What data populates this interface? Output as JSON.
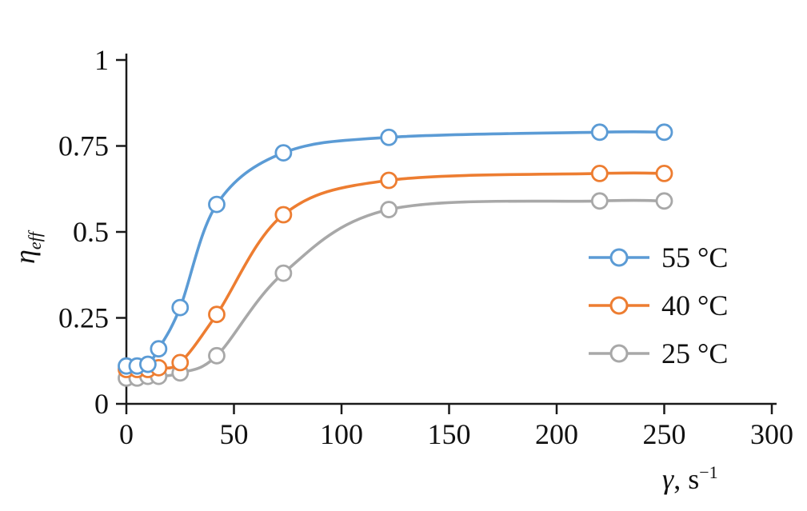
{
  "chart_data": {
    "type": "line",
    "title": "",
    "xlabel": {
      "gamma": "γ",
      "rest": ", s",
      "sup": "−1"
    },
    "ylabel": {
      "base": "η",
      "sub": "eff"
    },
    "xlim": [
      0,
      300
    ],
    "ylim": [
      0,
      1
    ],
    "x_ticks": [
      0,
      50,
      100,
      150,
      200,
      250,
      300
    ],
    "x_tick_labels": [
      "0",
      "50",
      "100",
      "150",
      "200",
      "250",
      "300"
    ],
    "y_ticks": [
      0,
      0.25,
      0.5,
      0.75,
      1
    ],
    "y_tick_labels": [
      "0",
      "0.25",
      "0.5",
      "0.75",
      "1"
    ],
    "grid": false,
    "legend_position": "right-middle",
    "marker": "open-circle",
    "axis_color": "#1a1a1a",
    "series": [
      {
        "name": "55 °C",
        "color": "#5b9bd5",
        "x": [
          0,
          5,
          10,
          15,
          25,
          42,
          73,
          122,
          220,
          250
        ],
        "y": [
          0.11,
          0.11,
          0.115,
          0.16,
          0.28,
          0.58,
          0.73,
          0.775,
          0.79,
          0.79
        ]
      },
      {
        "name": "40 °C",
        "color": "#ed7d31",
        "x": [
          0,
          5,
          10,
          15,
          25,
          42,
          73,
          122,
          220,
          250
        ],
        "y": [
          0.1,
          0.1,
          0.1,
          0.105,
          0.12,
          0.26,
          0.55,
          0.65,
          0.67,
          0.67
        ]
      },
      {
        "name": "25 °C",
        "color": "#a8a8a8",
        "x": [
          0,
          5,
          10,
          15,
          25,
          42,
          73,
          122,
          220,
          250
        ],
        "y": [
          0.075,
          0.075,
          0.08,
          0.08,
          0.09,
          0.14,
          0.38,
          0.565,
          0.59,
          0.59
        ]
      }
    ]
  }
}
